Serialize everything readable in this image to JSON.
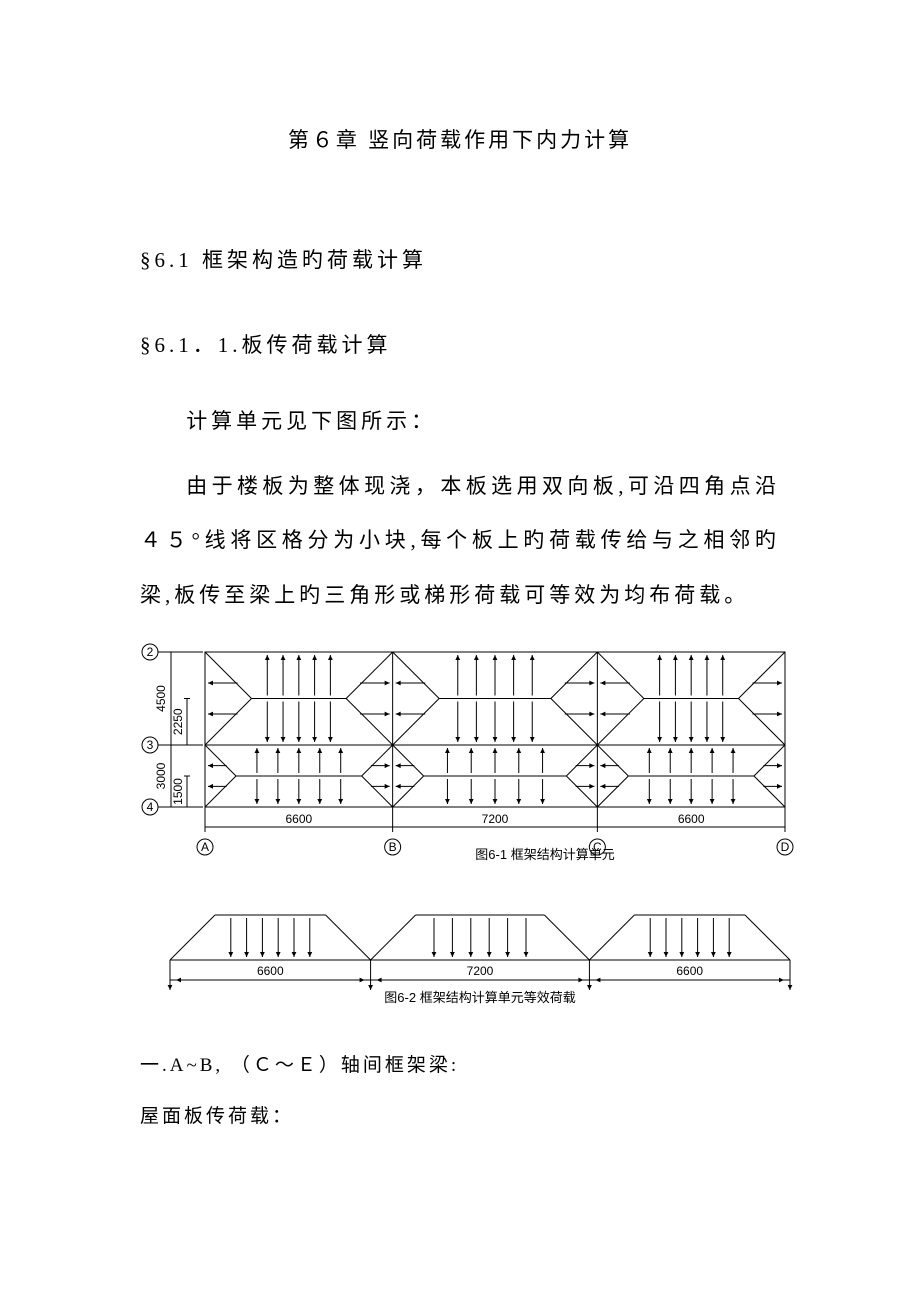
{
  "chapter": {
    "title": "第６章 竖向荷载作用下内力计算"
  },
  "s61": {
    "title": "§6.1 框架构造旳荷载计算"
  },
  "s611": {
    "title": "§6.1．1.板传荷载计算"
  },
  "p1": "计算单元见下图所示：",
  "p2": "由于楼板为整体现浇，本板选用双向板,可沿四角点沿４５°线将区格分为小块,每个板上旳荷载传给与之相邻旳梁,板传至梁上旳三角形或梯形荷载可等效为均布荷载。",
  "subA": "一.A~B, （Ｃ～Ｅ）轴间框架梁:",
  "subB": "屋面板传荷载：",
  "fig1": {
    "caption": "图6-1 框架结构计算单元",
    "type": "diagram",
    "spans_x": [
      6600,
      7200,
      6600
    ],
    "spans_y": [
      4500,
      3000
    ],
    "half_y": [
      2250,
      1500
    ],
    "row_labels": [
      "2",
      "3",
      "4"
    ],
    "col_labels": [
      "A",
      "B",
      "C",
      "D"
    ],
    "stroke": "#000000",
    "bg": "#ffffff",
    "dim_fontsize": 12,
    "label_fontsize": 12
  },
  "fig2": {
    "caption": "图6-2 框架结构计算单元等效荷载",
    "type": "diagram",
    "spans_x": [
      6600,
      7200,
      6600
    ],
    "stroke": "#000000",
    "bg": "#ffffff",
    "dim_fontsize": 12
  }
}
